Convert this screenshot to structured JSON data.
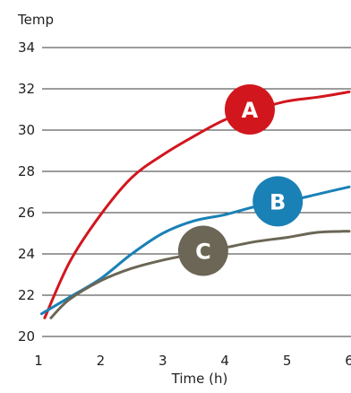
{
  "chart_data": {
    "type": "line",
    "title": "",
    "xlabel": "Time (h)",
    "ylabel": "Temp",
    "xlim": [
      1,
      6
    ],
    "ylim": [
      20,
      34
    ],
    "x_ticks": [
      1,
      2,
      3,
      4,
      5,
      6
    ],
    "y_ticks": [
      20,
      22,
      24,
      26,
      28,
      30,
      32,
      34
    ],
    "grid": "horizontal",
    "legend": "inline-badges",
    "series": [
      {
        "name": "A",
        "color": "#d2161e",
        "points": [
          [
            1.1,
            20.9
          ],
          [
            1.5,
            23.6
          ],
          [
            2.0,
            25.9
          ],
          [
            2.5,
            27.7
          ],
          [
            3.0,
            28.8
          ],
          [
            3.5,
            29.7
          ],
          [
            4.0,
            30.5
          ],
          [
            4.5,
            31.0
          ],
          [
            5.0,
            31.4
          ],
          [
            5.5,
            31.6
          ],
          [
            6.0,
            31.85
          ]
        ]
      },
      {
        "name": "B",
        "color": "#1a81b6",
        "points": [
          [
            1.05,
            21.1
          ],
          [
            1.5,
            21.9
          ],
          [
            2.0,
            22.8
          ],
          [
            2.5,
            24.0
          ],
          [
            3.0,
            25.0
          ],
          [
            3.5,
            25.6
          ],
          [
            4.0,
            25.9
          ],
          [
            4.5,
            26.3
          ],
          [
            5.0,
            26.55
          ],
          [
            5.5,
            26.9
          ],
          [
            6.0,
            27.25
          ]
        ]
      },
      {
        "name": "C",
        "color": "#6b6655",
        "points": [
          [
            1.2,
            20.9
          ],
          [
            1.5,
            21.8
          ],
          [
            2.0,
            22.7
          ],
          [
            2.5,
            23.3
          ],
          [
            3.0,
            23.7
          ],
          [
            3.5,
            24.0
          ],
          [
            4.0,
            24.3
          ],
          [
            4.5,
            24.6
          ],
          [
            5.0,
            24.8
          ],
          [
            5.5,
            25.05
          ],
          [
            6.0,
            25.1
          ]
        ]
      }
    ],
    "badges": [
      {
        "label": "A",
        "x": 4.4,
        "y": 31.0,
        "color": "#d2161e"
      },
      {
        "label": "B",
        "x": 4.85,
        "y": 26.55,
        "color": "#1a81b6"
      },
      {
        "label": "C",
        "x": 3.65,
        "y": 24.15,
        "color": "#6b6655"
      }
    ]
  }
}
